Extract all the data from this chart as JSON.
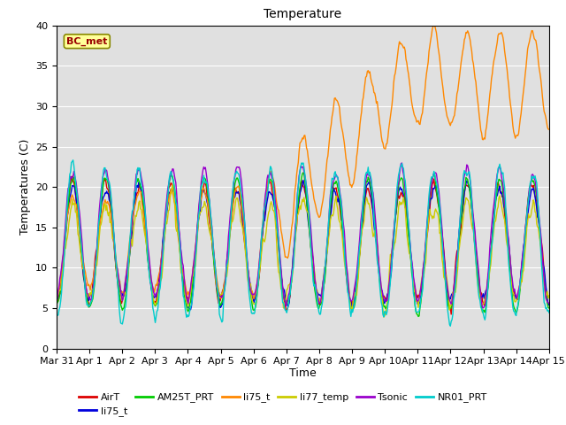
{
  "title": "Temperature",
  "ylabel": "Temperatures (C)",
  "xlabel": "Time",
  "annotation": "BC_met",
  "ylim": [
    0,
    40
  ],
  "xlim": [
    0,
    15
  ],
  "background_color": "#ffffff",
  "plot_bg_color": "#e0e0e0",
  "legend_labels": [
    "AirT",
    "li75_t",
    "AM25T_PRT",
    "li75_t",
    "li77_temp",
    "Tsonic",
    "NR01_PRT"
  ],
  "legend_colors": [
    "#dd0000",
    "#0000dd",
    "#00cc00",
    "#ff8800",
    "#cccc00",
    "#9900cc",
    "#00cccc"
  ],
  "title_fontsize": 10,
  "axis_fontsize": 9,
  "tick_fontsize": 8,
  "linewidth": 1.0
}
